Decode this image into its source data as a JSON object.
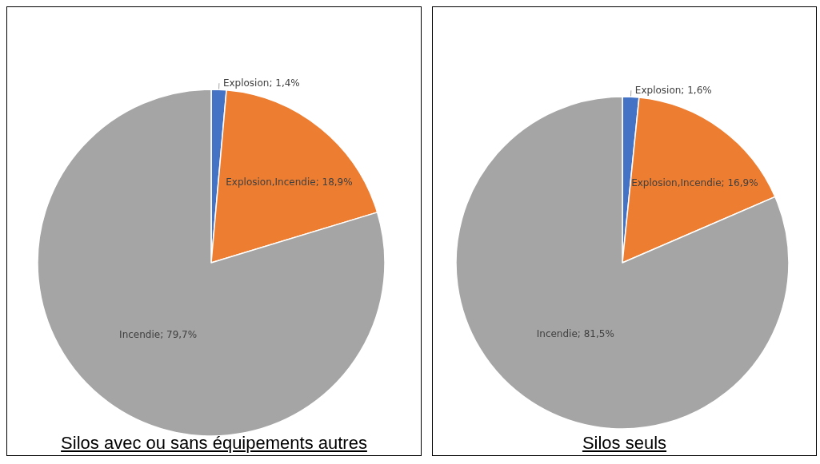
{
  "chart_data": [
    {
      "type": "pie",
      "title": "Silos avec ou sans équipements autres",
      "categories": [
        "Explosion",
        "Explosion,Incendie",
        "Incendie"
      ],
      "values": [
        1.4,
        18.9,
        79.7
      ],
      "colors": [
        "#4472c4",
        "#ed7d31",
        "#a5a5a5"
      ],
      "value_labels": [
        "1,4%",
        "18,9%",
        "79,7%"
      ],
      "legend": false
    },
    {
      "type": "pie",
      "title": "Silos seuls",
      "categories": [
        "Explosion",
        "Explosion,Incendie",
        "Incendie"
      ],
      "values": [
        1.6,
        16.9,
        81.5
      ],
      "colors": [
        "#4472c4",
        "#ed7d31",
        "#a5a5a5"
      ],
      "value_labels": [
        "1,6%",
        "16,9%",
        "81,5%"
      ],
      "legend": false
    }
  ]
}
